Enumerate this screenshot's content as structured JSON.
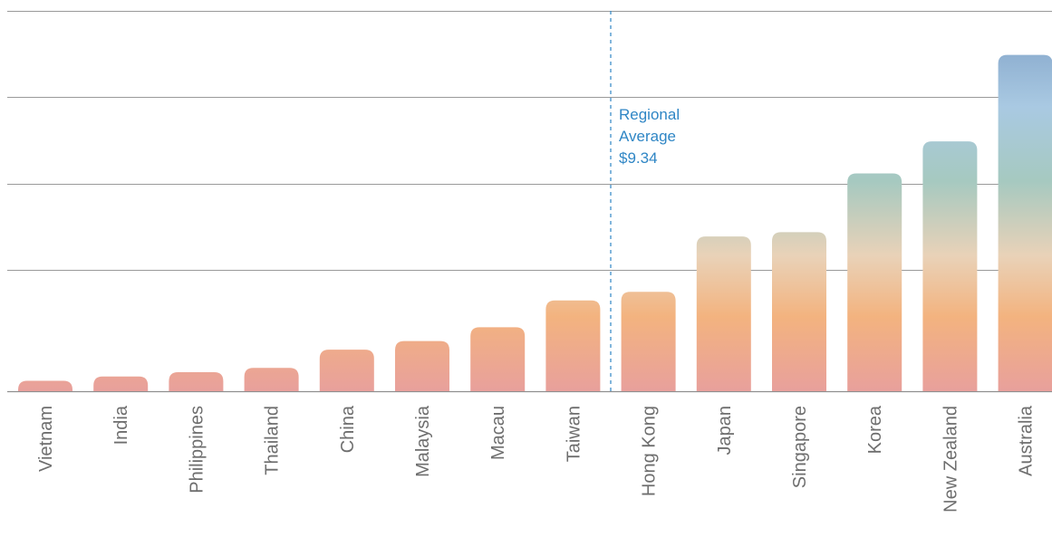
{
  "chart_data": {
    "type": "bar",
    "categories": [
      "Vietnam",
      "India",
      "Philippines",
      "Thailand",
      "China",
      "Malaysia",
      "Macau",
      "Taiwan",
      "Hong Kong",
      "Japan",
      "Singapore",
      "Korea",
      "New Zealand",
      "Australia"
    ],
    "values": [
      1.2,
      1.7,
      2.2,
      2.7,
      4.8,
      5.8,
      7.4,
      10.5,
      11.5,
      17.9,
      18.4,
      25.2,
      28.9,
      38.9
    ],
    "ylim": [
      0,
      44
    ],
    "yticks": [
      0,
      14,
      24,
      34,
      44
    ],
    "grid": true,
    "annotation": {
      "line1": "Regional",
      "line2": "Average",
      "line3": "$9.34"
    },
    "colors": {
      "bottom": "#e8a09c",
      "orange": "#f3b37f",
      "sage": "#a6c9c0",
      "blue": "#a9c9e2",
      "top": "#8fb0d1",
      "grid": "#9a9a9a",
      "label": "#6e6e6e",
      "average": "#2f86c5"
    }
  }
}
